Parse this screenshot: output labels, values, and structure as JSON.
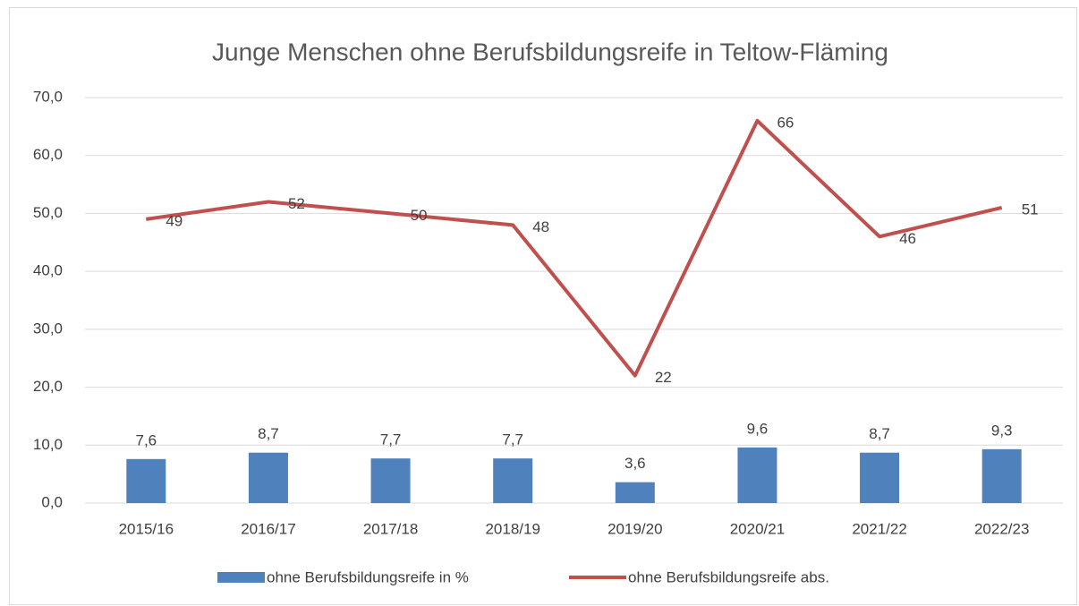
{
  "chart_data": {
    "type": "combo",
    "title": "Junge Menschen ohne Berufsbildungsreife in Teltow-Fläming",
    "categories": [
      "2015/16",
      "2016/17",
      "2017/18",
      "2018/19",
      "2019/20",
      "2020/21",
      "2021/22",
      "2022/23"
    ],
    "series": [
      {
        "name": "ohne Berufsbildungsreife in %",
        "type": "bar",
        "color": "#4f81bd",
        "values": [
          7.6,
          8.7,
          7.7,
          7.7,
          3.6,
          9.6,
          8.7,
          9.3
        ],
        "value_labels": [
          "7,6",
          "8,7",
          "7,7",
          "7,7",
          "3,6",
          "9,6",
          "8,7",
          "9,3"
        ]
      },
      {
        "name": "ohne Berufsbildungsreife abs.",
        "type": "line",
        "color": "#c0504d",
        "values": [
          49,
          52,
          50,
          48,
          22,
          66,
          46,
          51
        ]
      }
    ],
    "ylim": [
      0,
      70
    ],
    "yticks": [
      {
        "value": 0,
        "label": "0,0"
      },
      {
        "value": 10,
        "label": "10,0"
      },
      {
        "value": 20,
        "label": "20,0"
      },
      {
        "value": 30,
        "label": "30,0"
      },
      {
        "value": 40,
        "label": "40,0"
      },
      {
        "value": 50,
        "label": "50,0"
      },
      {
        "value": 60,
        "label": "60,0"
      },
      {
        "value": 70,
        "label": "70,0"
      }
    ],
    "grid": true,
    "legend": "bottom"
  }
}
